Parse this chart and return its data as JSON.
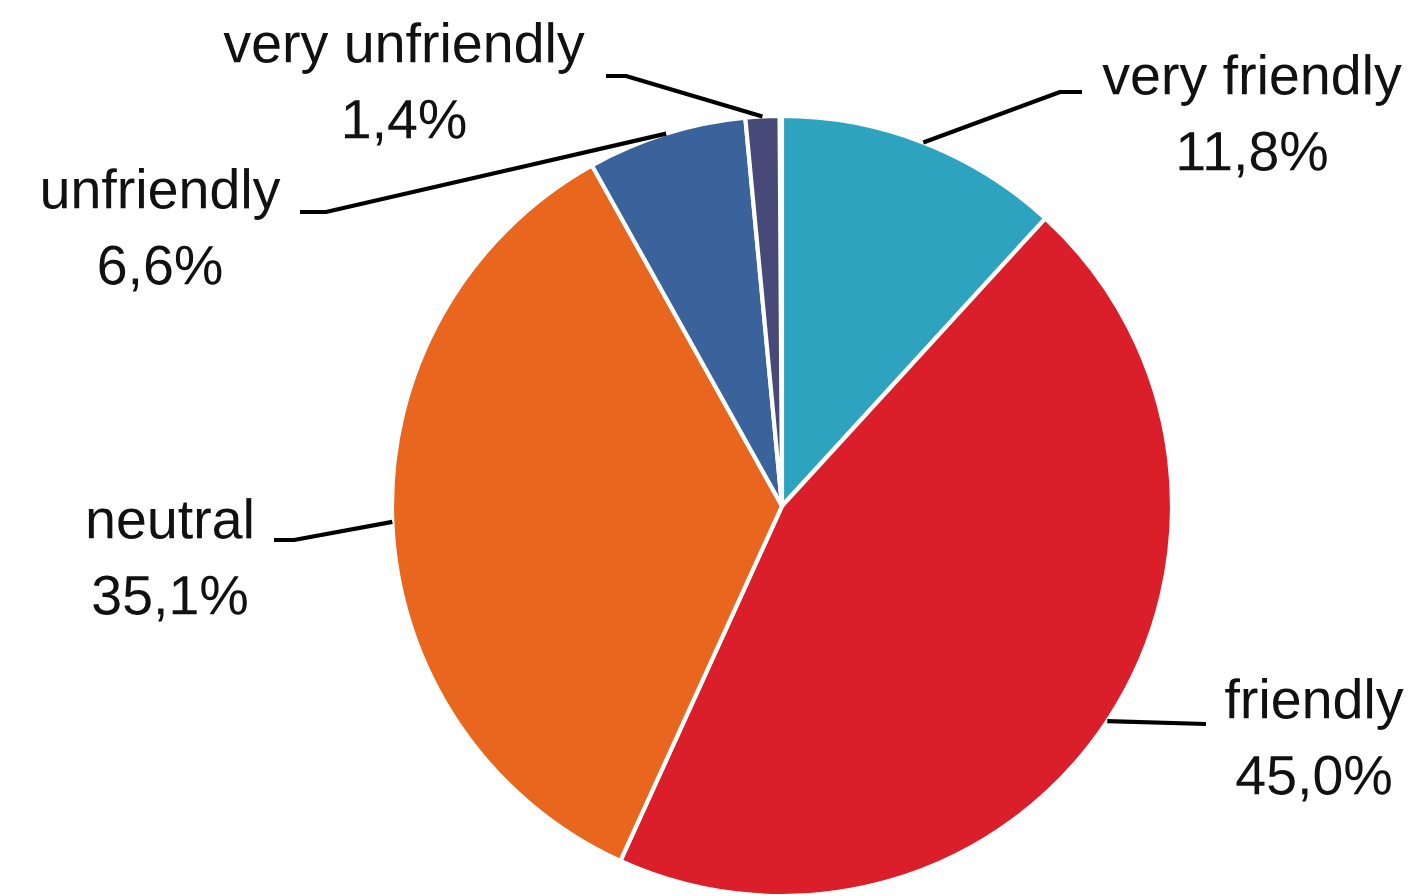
{
  "chart_data": {
    "type": "pie",
    "categories": [
      "very friendly",
      "friendly",
      "neutral",
      "unfriendly",
      "very unfriendly"
    ],
    "values": [
      11.8,
      45.0,
      35.1,
      6.6,
      1.4
    ],
    "value_labels": [
      "11,8%",
      "45,0%",
      "35,1%",
      "6,6%",
      "1,4%"
    ],
    "colors": [
      "#2ea3bf",
      "#da1f2b",
      "#e9661e",
      "#3a639c",
      "#474a78"
    ]
  }
}
